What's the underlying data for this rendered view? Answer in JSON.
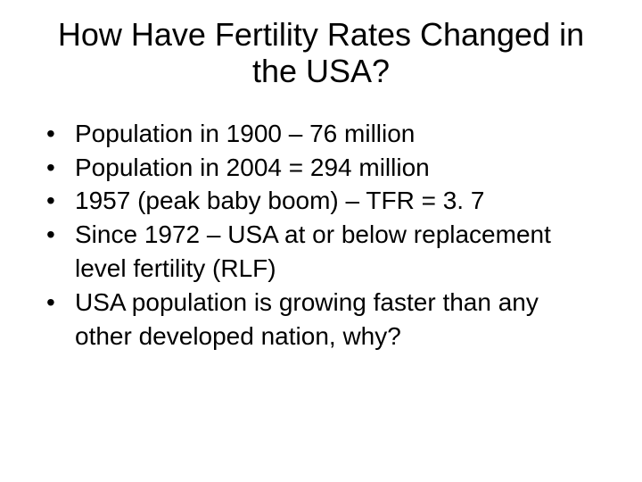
{
  "slide": {
    "title": "How Have Fertility Rates Changed in the USA?",
    "bullets": [
      "Population in 1900 – 76 million",
      "Population in 2004 = 294 million",
      "1957 (peak baby boom) – TFR = 3. 7",
      "Since 1972 – USA at or below replacement level fertility (RLF)",
      "USA population is growing faster than any other developed nation, why?"
    ],
    "colors": {
      "background": "#ffffff",
      "text": "#000000"
    },
    "typography": {
      "title_fontsize": 36,
      "bullet_fontsize": 28,
      "font_family": "Arial"
    }
  }
}
